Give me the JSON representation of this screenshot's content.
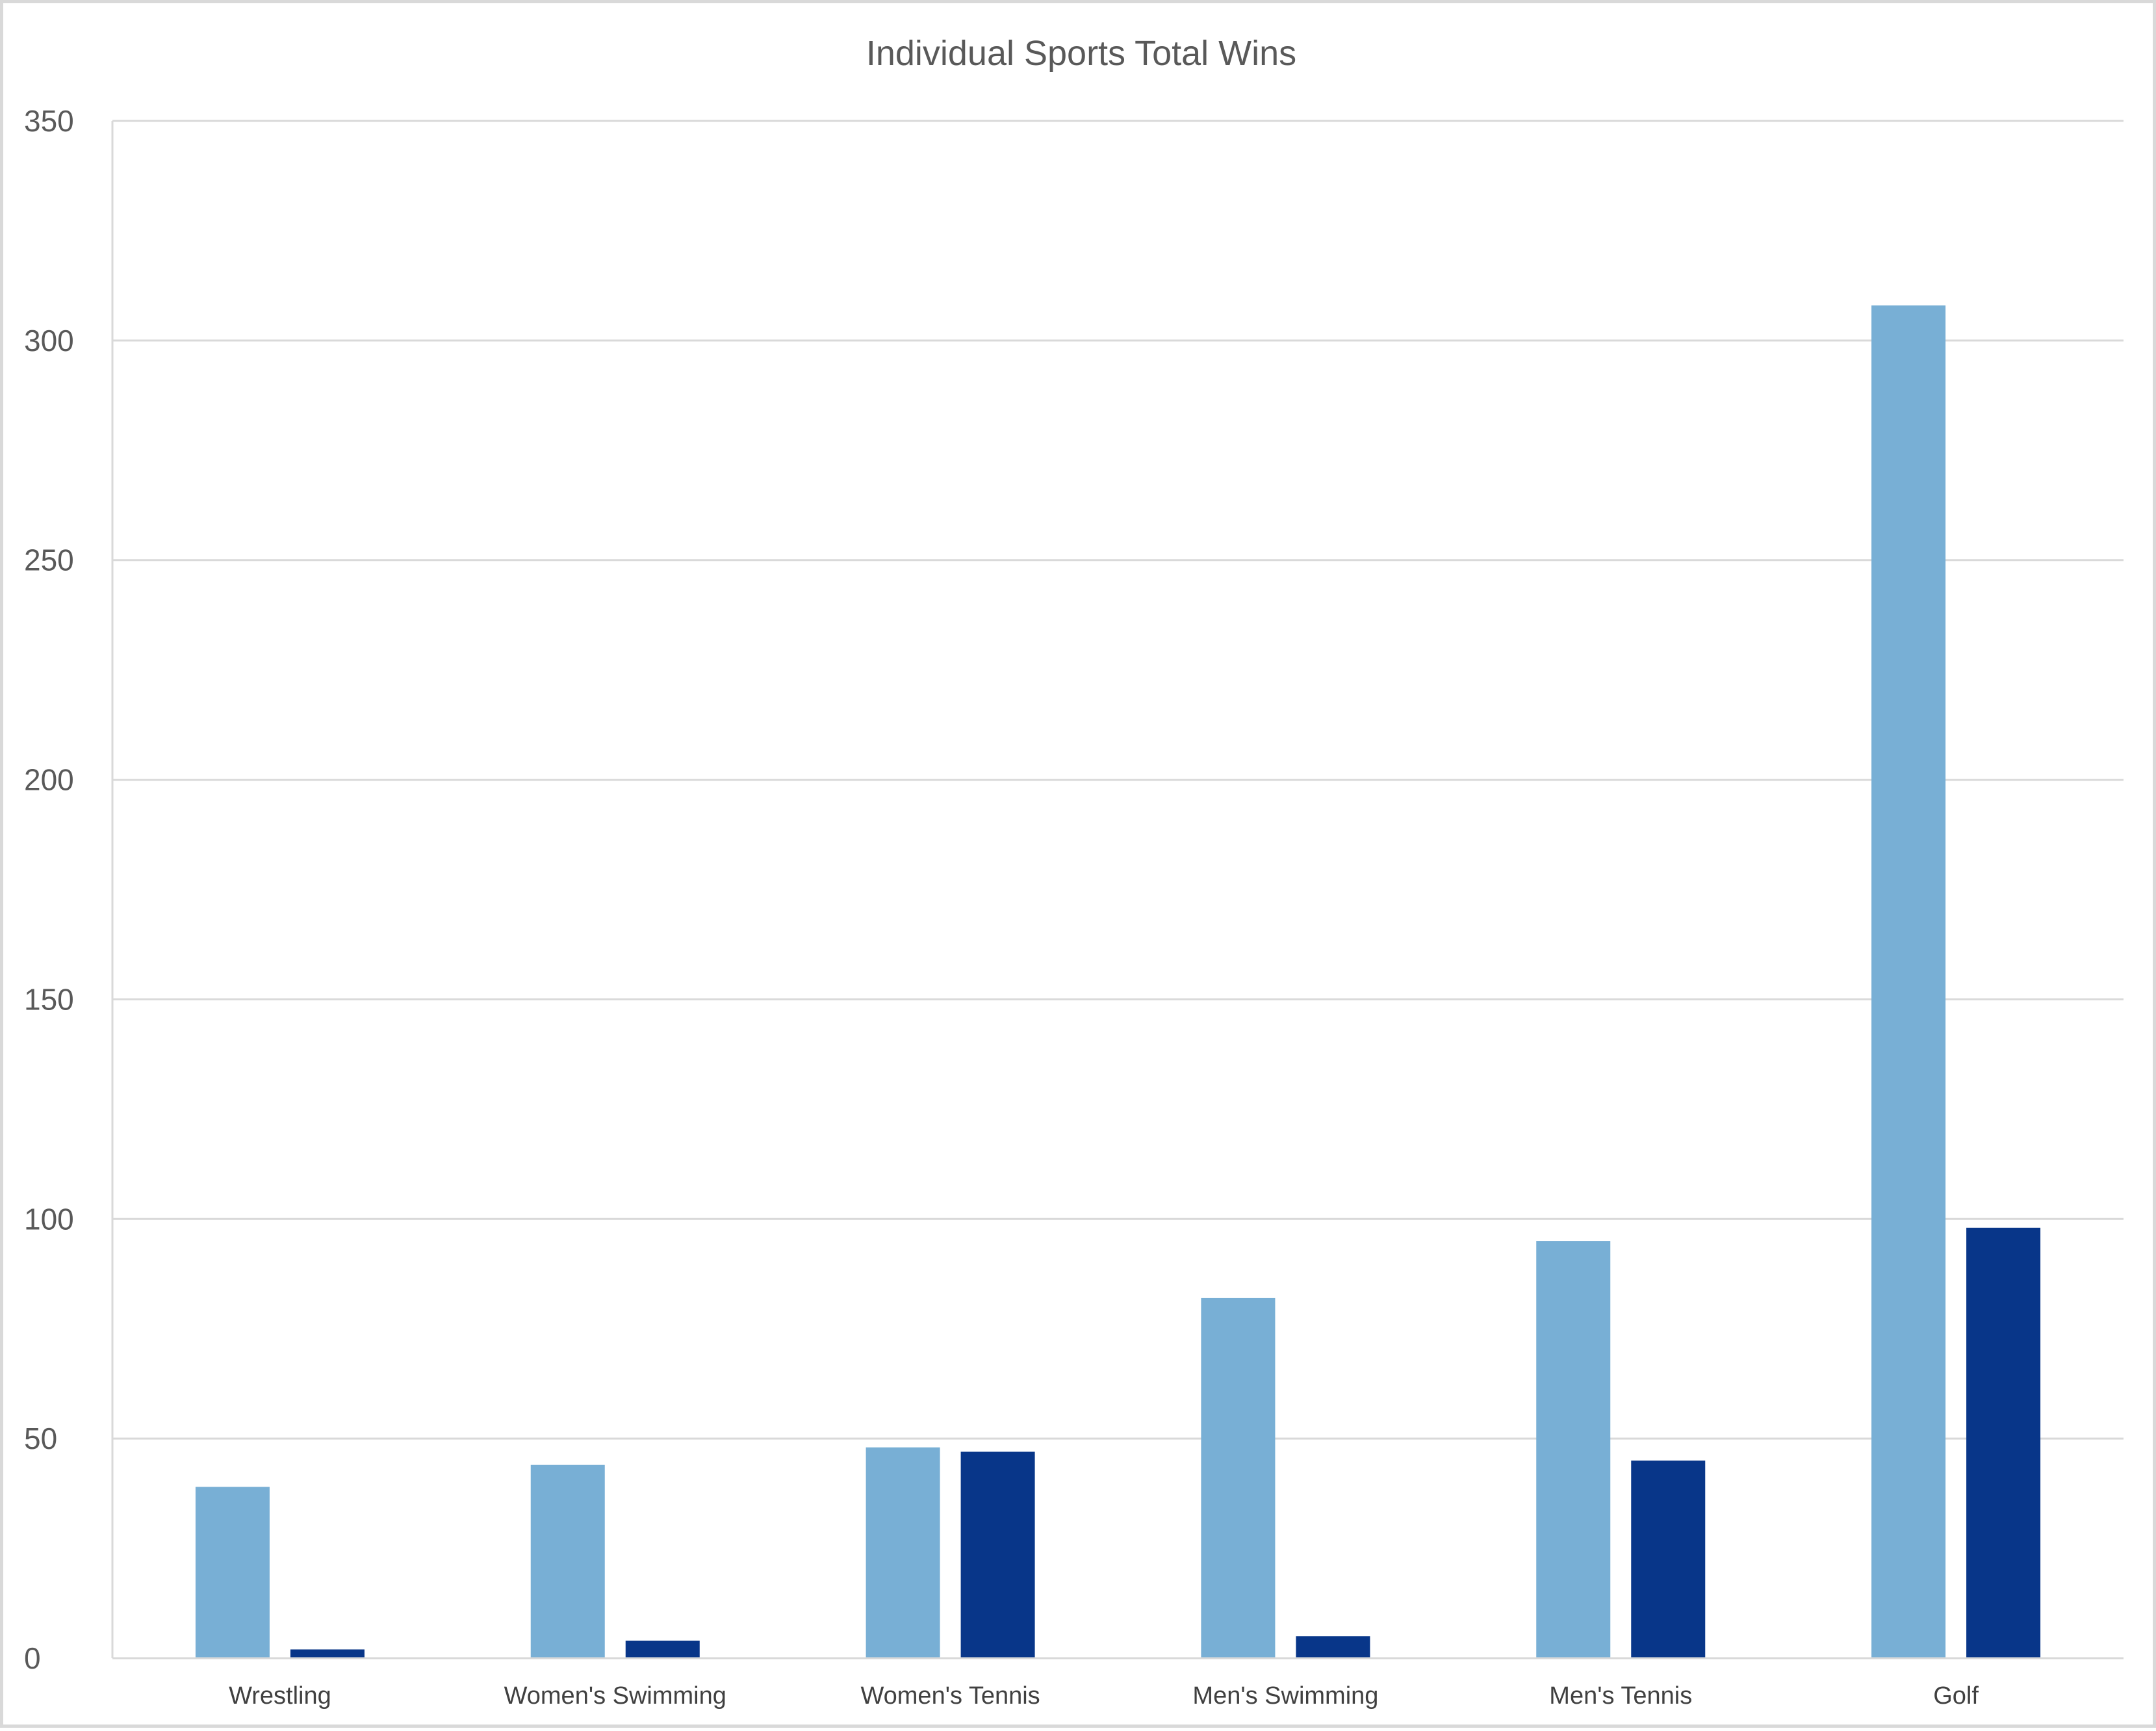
{
  "chart_data": {
    "type": "bar",
    "title": "Individual Sports Total Wins",
    "xlabel": "",
    "ylabel": "",
    "categories": [
      "Wrestling",
      "Women's Swimming",
      "Women's Tennis",
      "Men's Swimming",
      "Men's Tennis",
      "Golf"
    ],
    "series": [
      {
        "values": [
          39,
          44,
          48,
          82,
          95,
          308
        ],
        "color": "#78AFD5"
      },
      {
        "values": [
          2,
          4,
          47,
          5,
          45,
          98
        ],
        "color": "#083689"
      }
    ],
    "ylim": [
      0,
      350
    ],
    "yticks": [
      0,
      50,
      100,
      150,
      200,
      250,
      300,
      350
    ],
    "ytick_labels": [
      "0",
      "50",
      "100",
      "150",
      "200",
      "250",
      "300",
      "350"
    ],
    "grid": true,
    "gridline_color": "#d9d9d9",
    "legend": "none"
  }
}
